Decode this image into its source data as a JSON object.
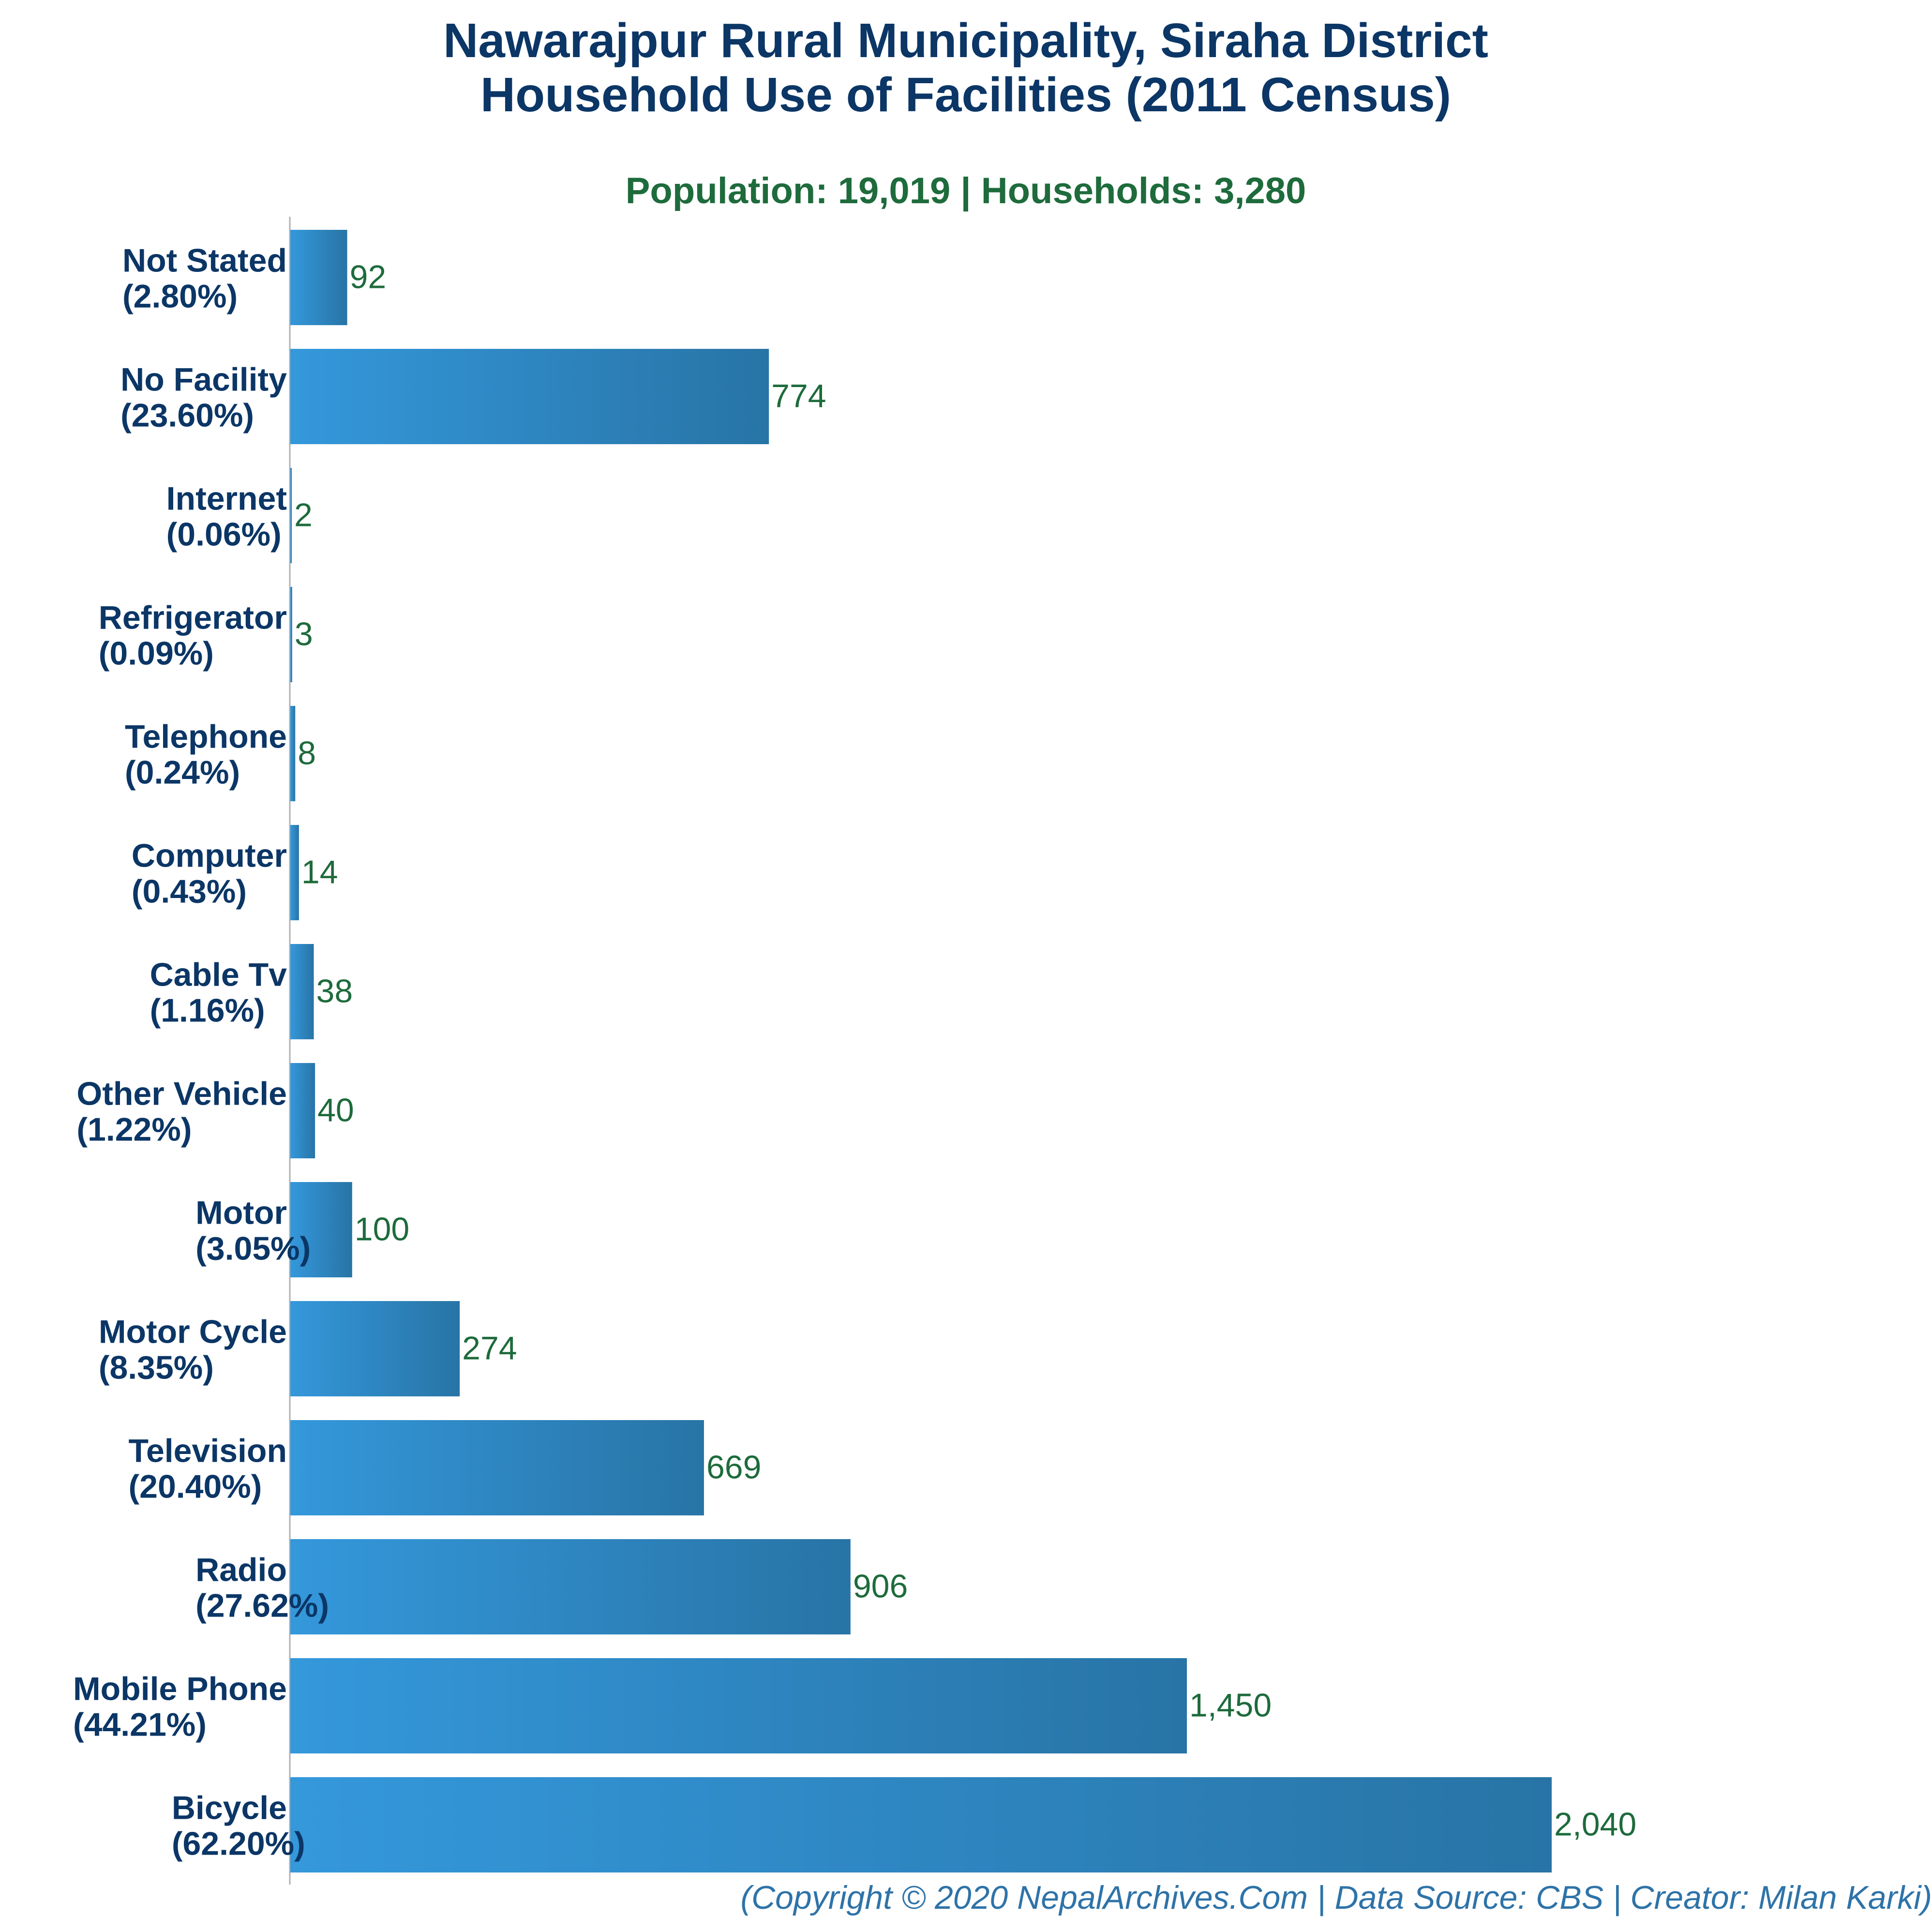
{
  "chart_data": {
    "type": "bar",
    "orientation": "horizontal",
    "title_lines": [
      "Nawarajpur Rural Municipality, Siraha District",
      "Household Use of Facilities (2011 Census)"
    ],
    "subtitle": "Population: 19,019 | Households: 3,280",
    "categories": [
      "Not Stated",
      "No Facility",
      "Internet",
      "Refrigerator",
      "Telephone",
      "Computer",
      "Cable Tv",
      "Other Vehicle",
      "Motor",
      "Motor Cycle",
      "Television",
      "Radio",
      "Mobile Phone",
      "Bicycle"
    ],
    "percent_labels": [
      "(2.80%)",
      "(23.60%)",
      "(0.06%)",
      "(0.09%)",
      "(0.24%)",
      "(0.43%)",
      "(1.16%)",
      "(1.22%)",
      "(3.05%)",
      "(8.35%)",
      "(20.40%)",
      "(27.62%)",
      "(44.21%)",
      "(62.20%)"
    ],
    "values": [
      92,
      774,
      2,
      3,
      8,
      14,
      38,
      40,
      100,
      274,
      669,
      906,
      1450,
      2040
    ],
    "value_labels": [
      "92",
      "774",
      "2",
      "3",
      "8",
      "14",
      "38",
      "40",
      "100",
      "274",
      "669",
      "906",
      "1,450",
      "2,040"
    ],
    "xlim": [
      0,
      2040
    ],
    "grid": false,
    "legend": "none",
    "xlabel": "",
    "ylabel": ""
  },
  "footer": "(Copyright © 2020 NepalArchives.Com | Data Source: CBS | Creator: Milan Karki)",
  "colors": {
    "title": "#0b3666",
    "subtitle": "#1e6b3c",
    "value_label": "#1e6b3c",
    "bar_gradient_start": "#3498db",
    "bar_gradient_end": "#2874a6",
    "axis": "#b0b0b0",
    "footer": "#2e73a8"
  }
}
